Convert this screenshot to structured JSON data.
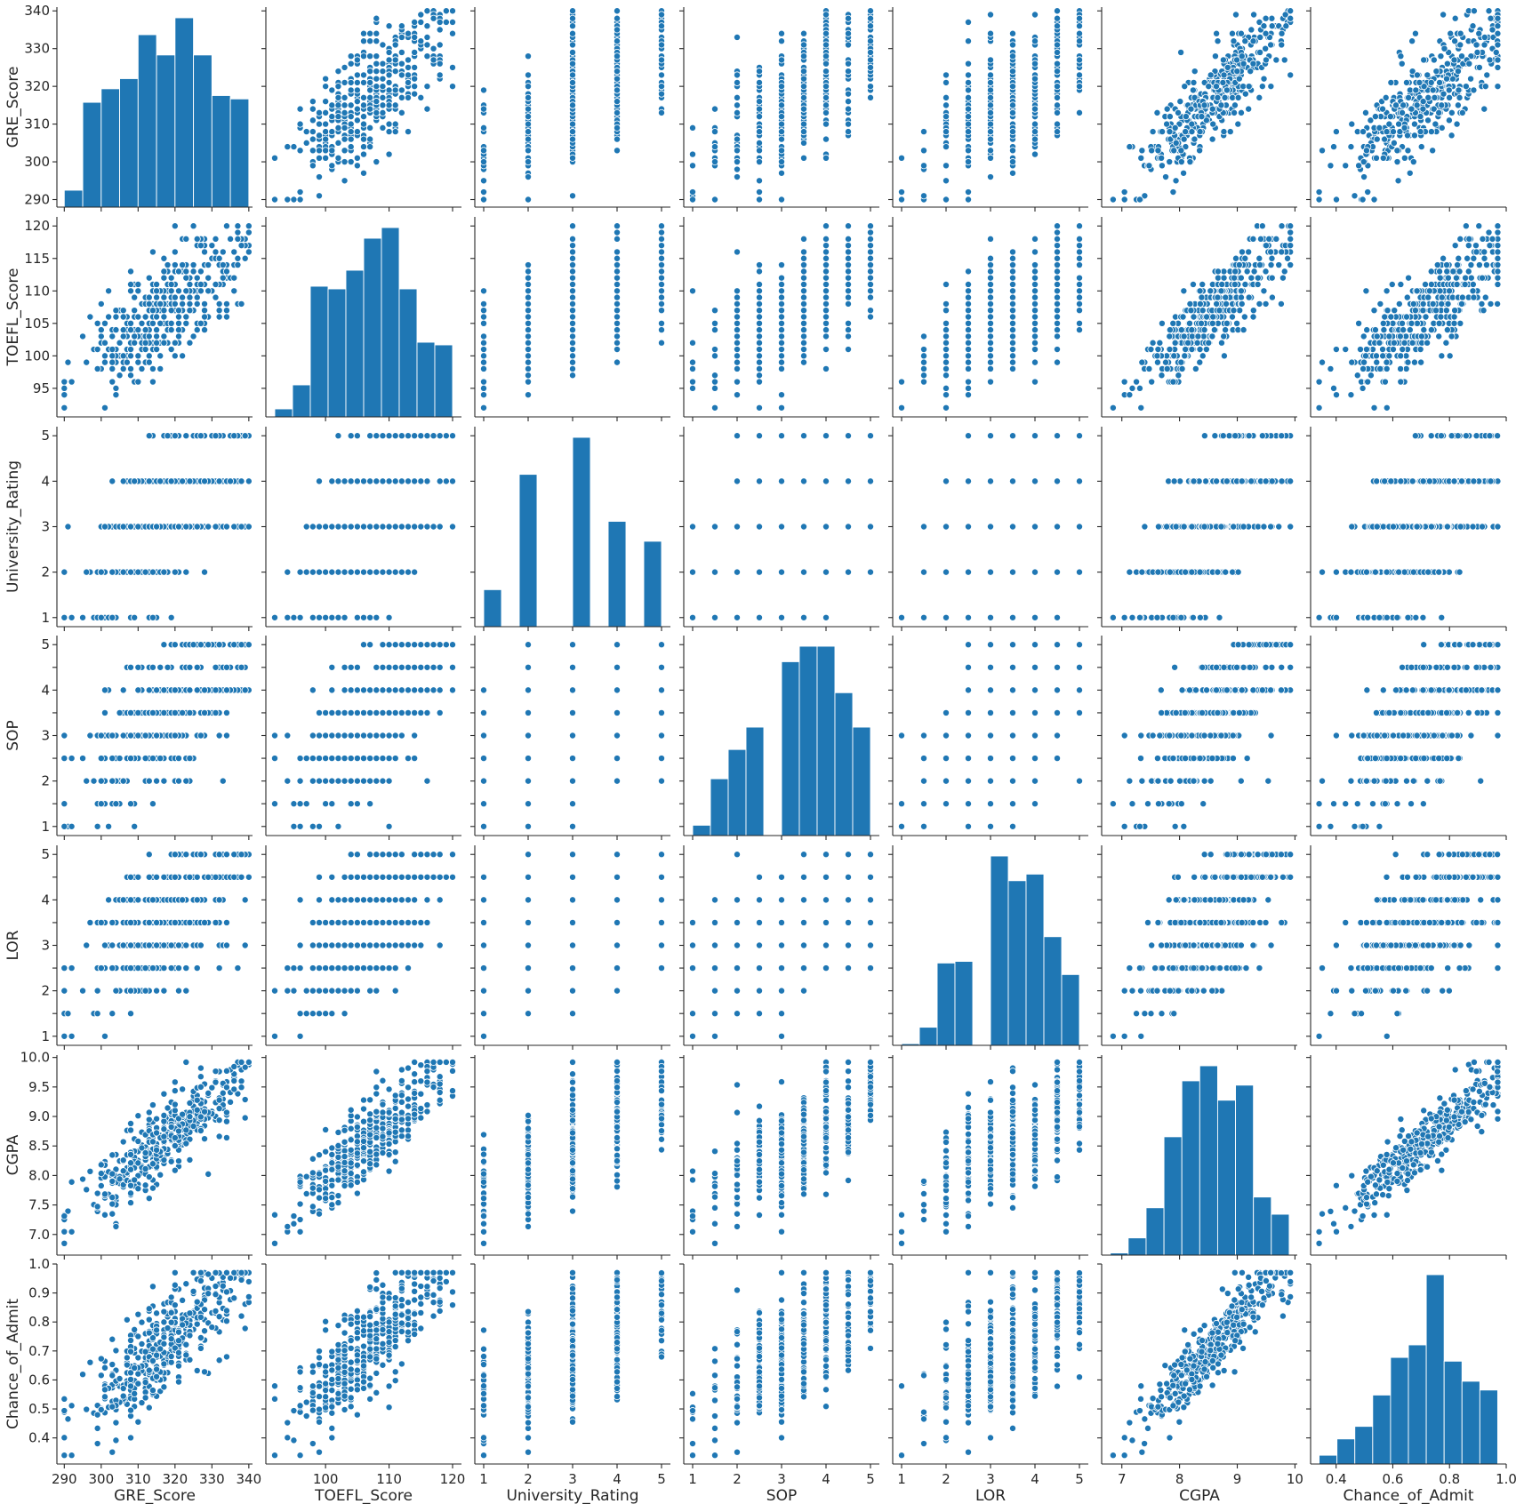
{
  "chart_data": {
    "type": "scatter",
    "title": "",
    "description_variables": [
      "GRE_Score",
      "TOEFL_Score",
      "University_Rating",
      "SOP",
      "LOR",
      "CGPA",
      "Chance_of_Admit"
    ],
    "diagonal": "histogram",
    "grid": false,
    "legend": "none",
    "color": "#1f77b4",
    "variables": [
      {
        "name": "GRE_Score",
        "lim": [
          288,
          341
        ],
        "ticks": [
          290,
          300,
          310,
          320,
          330,
          340
        ],
        "tick_labels": [
          "290",
          "300",
          "310",
          "320",
          "330",
          "340"
        ]
      },
      {
        "name": "TOEFL_Score",
        "lim": [
          90.6,
          121.4
        ],
        "ticks": [
          95,
          100,
          105,
          110,
          115,
          120
        ],
        "tick_labels": [
          "95",
          "100",
          "105",
          "110",
          "115",
          "120"
        ],
        "x_ticks": [
          100,
          110,
          120
        ],
        "x_tick_labels": [
          "100",
          "110",
          "120"
        ]
      },
      {
        "name": "University_Rating",
        "lim": [
          0.8,
          5.2
        ],
        "ticks": [
          1,
          2,
          3,
          4,
          5
        ],
        "tick_labels": [
          "1",
          "2",
          "3",
          "4",
          "5"
        ]
      },
      {
        "name": "SOP",
        "lim": [
          0.8,
          5.2
        ],
        "ticks": [
          1,
          1.5,
          2,
          2.5,
          3,
          3.5,
          4,
          4.5,
          5
        ],
        "tick_labels": [
          "1",
          "",
          "2",
          "",
          "3",
          "",
          "4",
          "",
          "5"
        ],
        "x_ticks": [
          1,
          2,
          3,
          4,
          5
        ],
        "x_tick_labels": [
          "1",
          "2",
          "3",
          "4",
          "5"
        ]
      },
      {
        "name": "LOR",
        "lim": [
          0.8,
          5.2
        ],
        "ticks": [
          1,
          1.5,
          2,
          2.5,
          3,
          3.5,
          4,
          4.5,
          5
        ],
        "tick_labels": [
          "1",
          "",
          "2",
          "",
          "3",
          "",
          "4",
          "",
          "5"
        ],
        "x_ticks": [
          1,
          2,
          3,
          4,
          5
        ],
        "x_tick_labels": [
          "1",
          "2",
          "3",
          "4",
          "5"
        ]
      },
      {
        "name": "CGPA",
        "lim": [
          6.65,
          10.04
        ],
        "ticks": [
          7.0,
          7.5,
          8.0,
          8.5,
          9.0,
          9.5,
          10.0
        ],
        "tick_labels": [
          "7.0",
          "7.5",
          "8.0",
          "8.5",
          "9.0",
          "9.5",
          "10.0"
        ],
        "x_ticks": [
          7,
          8,
          9,
          10
        ],
        "x_tick_labels": [
          "7",
          "8",
          "9",
          "10"
        ]
      },
      {
        "name": "Chance_of_Admit",
        "lim": [
          0.31,
          1.0
        ],
        "ticks": [
          0.4,
          0.5,
          0.6,
          0.7,
          0.8,
          0.9,
          1.0
        ],
        "tick_labels": [
          "0.4",
          "0.5",
          "0.6",
          "0.7",
          "0.8",
          "0.9",
          "1.0"
        ],
        "x_ticks": [
          0.4,
          0.6,
          0.8,
          1.0
        ],
        "x_tick_labels": [
          "0.4",
          "0.6",
          "0.8",
          "1.0"
        ]
      }
    ],
    "histograms": {
      "GRE_Score": {
        "edges": [
          290,
          295,
          300,
          305,
          310,
          315,
          320,
          325,
          330,
          335,
          340
        ],
        "counts": [
          5,
          31,
          35,
          38,
          51,
          45,
          56,
          45,
          33,
          32
        ]
      },
      "TOEFL_Score": {
        "edges": [
          92,
          94.8,
          97.6,
          100.4,
          103.2,
          106,
          108.8,
          111.6,
          114.4,
          117.2,
          120
        ],
        "counts": [
          3,
          12,
          49,
          48,
          55,
          67,
          71,
          48,
          28,
          27
        ]
      },
      "University_Rating": {
        "edges": [
          1,
          1.4,
          1.8,
          2.2,
          2.6,
          3.0,
          3.4,
          3.8,
          4.2,
          4.6,
          5.0
        ],
        "counts": [
          26,
          0,
          107,
          0,
          0,
          133,
          0,
          74,
          0,
          60
        ]
      },
      "SOP": {
        "edges": [
          1,
          1.4,
          1.8,
          2.2,
          2.6,
          3.0,
          3.4,
          3.8,
          4.2,
          4.6,
          5.0
        ],
        "counts": [
          6,
          33,
          50,
          63,
          0,
          101,
          110,
          110,
          83,
          63
        ]
      },
      "LOR": {
        "edges": [
          1,
          1.4,
          1.8,
          2.2,
          2.6,
          3.0,
          3.4,
          3.8,
          4.2,
          4.6,
          5.0
        ],
        "counts": [
          1,
          11,
          50,
          51,
          0,
          115,
          100,
          104,
          66,
          43
        ]
      },
      "CGPA": {
        "edges": [
          6.8,
          7.11,
          7.42,
          7.73,
          8.04,
          8.35,
          8.66,
          8.97,
          9.28,
          9.59,
          9.9
        ],
        "counts": [
          1,
          8,
          22,
          55,
          81,
          88,
          72,
          79,
          27,
          19
        ]
      },
      "Chance_of_Admit": {
        "edges": [
          0.34,
          0.403,
          0.466,
          0.529,
          0.592,
          0.655,
          0.718,
          0.781,
          0.844,
          0.907,
          0.97
        ],
        "counts": [
          7,
          20,
          30,
          55,
          85,
          95,
          151,
          82,
          66,
          59
        ]
      }
    }
  }
}
